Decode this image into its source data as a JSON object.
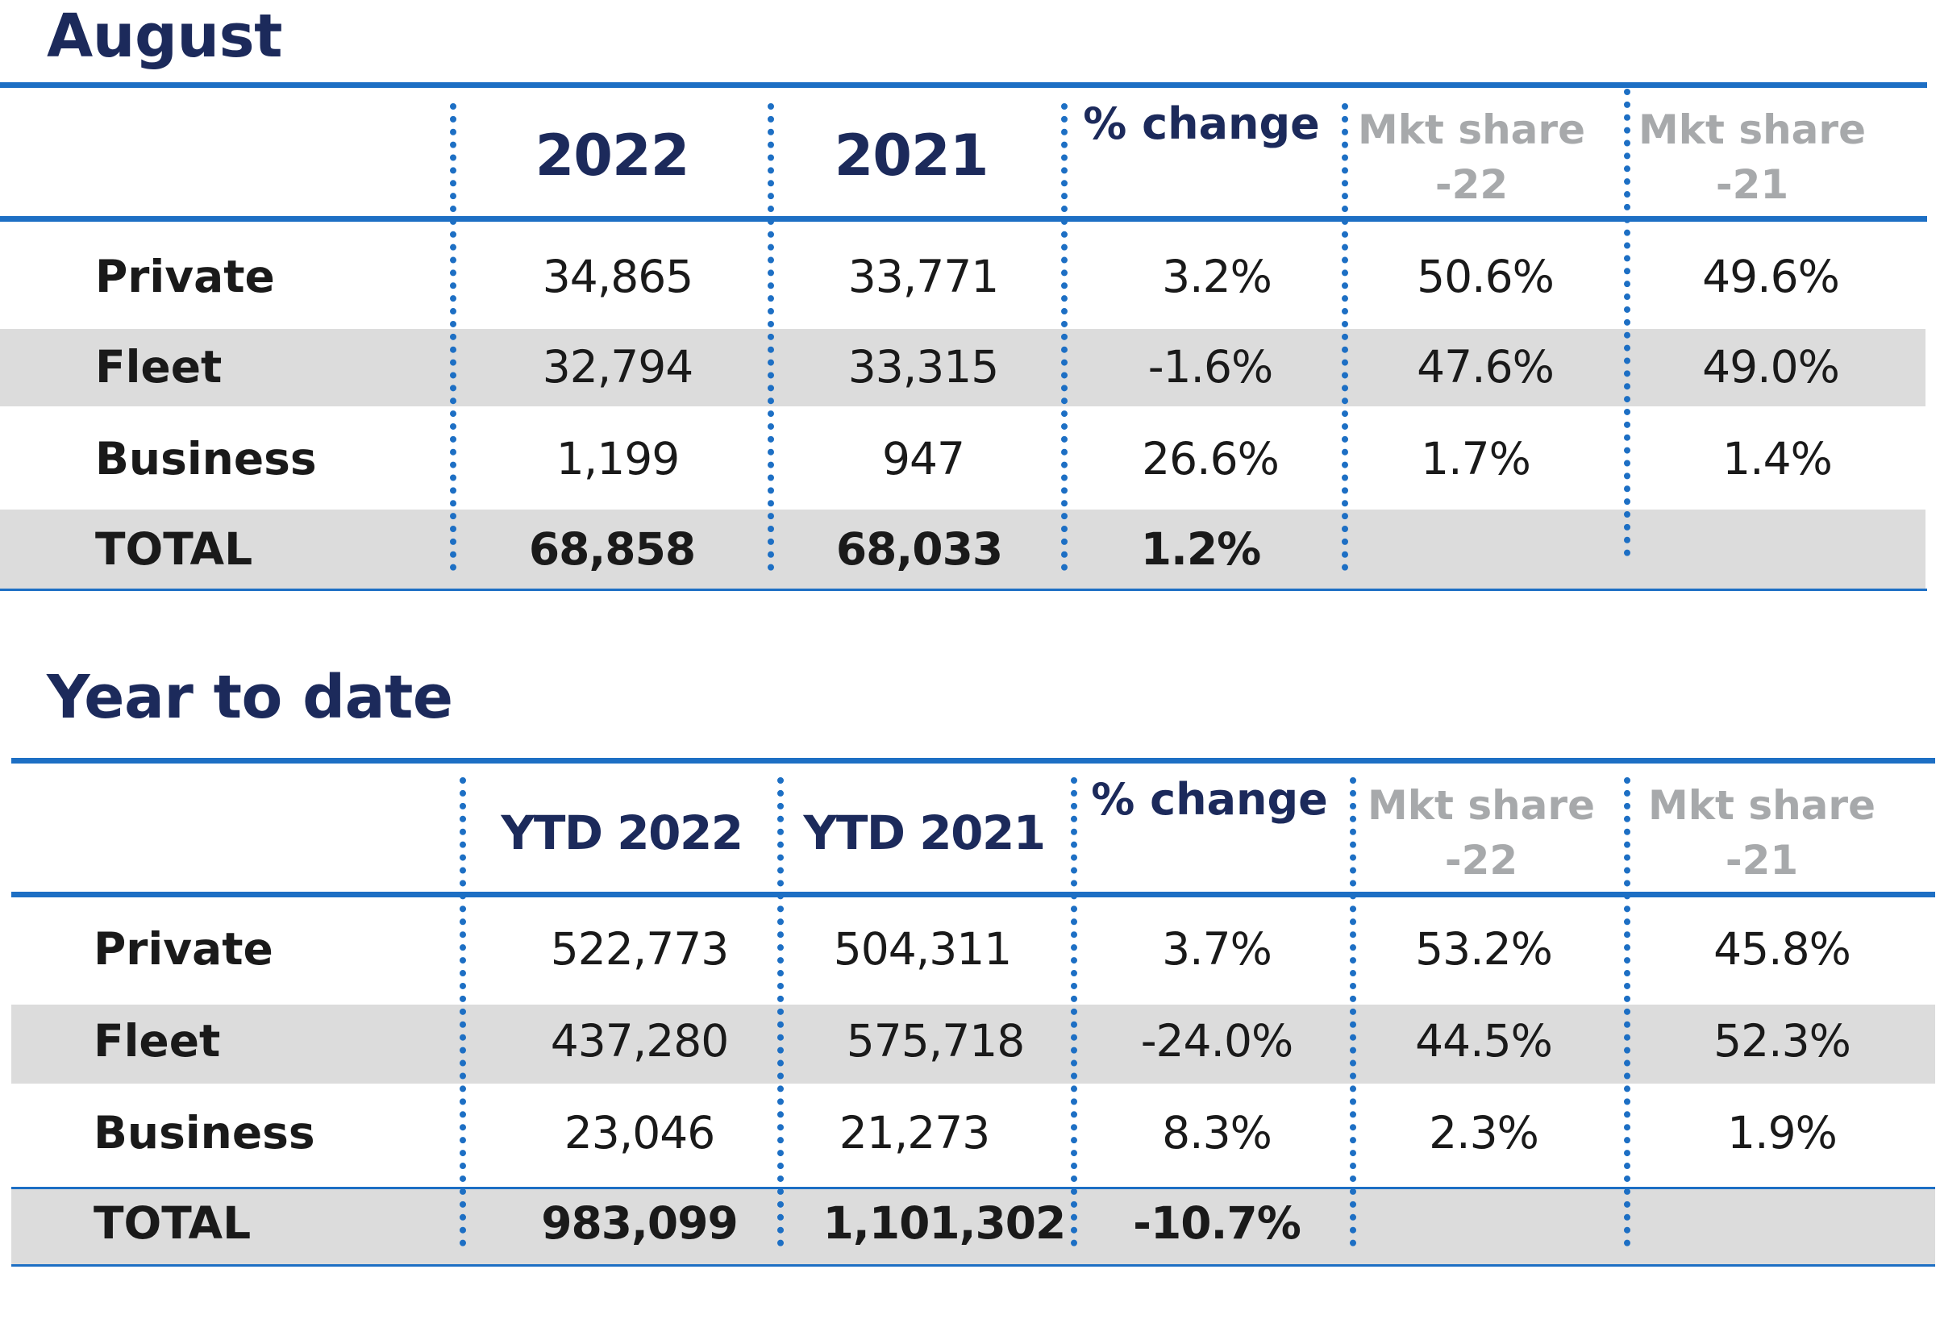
{
  "august": {
    "title": "August",
    "headers": {
      "col1": "2022",
      "col2": "2021",
      "change": "% change",
      "mkt22": "Mkt share -22",
      "mkt21": "Mkt share -21"
    },
    "rows": [
      {
        "label": "Private",
        "v2022": "34,865",
        "v2021": "33,771",
        "change": "3.2%",
        "mkt22": "50.6%",
        "mkt21": "49.6%"
      },
      {
        "label": "Fleet",
        "v2022": "32,794",
        "v2021": "33,315",
        "change": "-1.6%",
        "mkt22": "47.6%",
        "mkt21": "49.0%"
      },
      {
        "label": "Business",
        "v2022": "1,199",
        "v2021": "947",
        "change": "26.6%",
        "mkt22": "1.7%",
        "mkt21": "1.4%"
      }
    ],
    "total": {
      "label": "TOTAL",
      "v2022": "68,858",
      "v2021": "68,033",
      "change": "1.2%"
    }
  },
  "ytd": {
    "title": "Year to date",
    "headers": {
      "col1": "YTD 2022",
      "col2": "YTD 2021",
      "change": "% change",
      "mkt22": "Mkt share -22",
      "mkt21": "Mkt share -21"
    },
    "rows": [
      {
        "label": "Private",
        "v2022": "522,773",
        "v2021": "504,311",
        "change": "3.7%",
        "mkt22": "53.2%",
        "mkt21": "45.8%"
      },
      {
        "label": "Fleet",
        "v2022": "437,280",
        "v2021": "575,718",
        "change": "-24.0%",
        "mkt22": "44.5%",
        "mkt21": "52.3%"
      },
      {
        "label": "Business",
        "v2022": "23,046",
        "v2021": "21,273",
        "change": "8.3%",
        "mkt22": "2.3%",
        "mkt21": "1.9%"
      }
    ],
    "total": {
      "label": "TOTAL",
      "v2022": "983,099",
      "v2021": "1,101,302",
      "change": "-10.7%"
    }
  },
  "colors": {
    "accent_blue": "#1d6fc4",
    "title_navy": "#1c2a5b",
    "band_gray": "#dcdcdc",
    "header_gray": "#a7a9ab"
  }
}
